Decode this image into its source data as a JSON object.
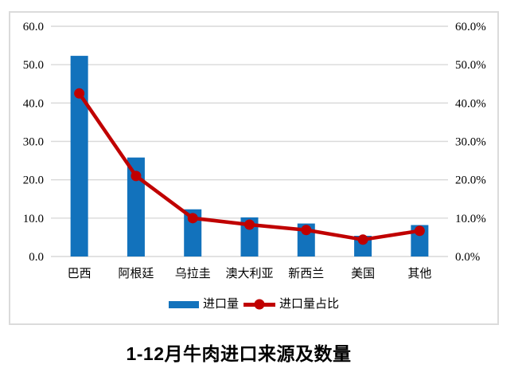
{
  "title": "1-12月牛肉进口来源及数量",
  "colors": {
    "bar": "#1272BC",
    "line": "#C00000",
    "grid": "#D9D9D9",
    "frame_border": "#DBDBDB",
    "text": "#000000",
    "background": "#FFFFFF"
  },
  "chart_data": {
    "type": "bar",
    "subtype": "bar+line combo, dual axis",
    "title": "1-12月牛肉进口来源及数量",
    "categories": [
      "巴西",
      "阿根廷",
      "乌拉圭",
      "澳大利亚",
      "新西兰",
      "美国",
      "其他"
    ],
    "series": [
      {
        "name": "进口量",
        "type": "bar",
        "axis": "left",
        "color": "#1272BC",
        "values": [
          52.3,
          25.8,
          12.3,
          10.2,
          8.6,
          5.4,
          8.2
        ]
      },
      {
        "name": "进口量占比",
        "type": "line",
        "axis": "right",
        "color": "#C00000",
        "values": [
          42.5,
          21.0,
          10.0,
          8.3,
          6.9,
          4.4,
          6.7
        ],
        "unit": "%"
      }
    ],
    "left_axis": {
      "min": 0,
      "max": 60,
      "step": 10,
      "tick_labels": [
        "0.0",
        "10.0",
        "20.0",
        "30.0",
        "40.0",
        "50.0",
        "60.0"
      ]
    },
    "right_axis": {
      "min": 0,
      "max": 60,
      "step": 10,
      "tick_labels": [
        "0.0%",
        "10.0%",
        "20.0%",
        "30.0%",
        "40.0%",
        "50.0%",
        "60.0%"
      ]
    },
    "grid": true,
    "legend_position": "bottom-inside",
    "xlabel": "",
    "ylabel": ""
  }
}
